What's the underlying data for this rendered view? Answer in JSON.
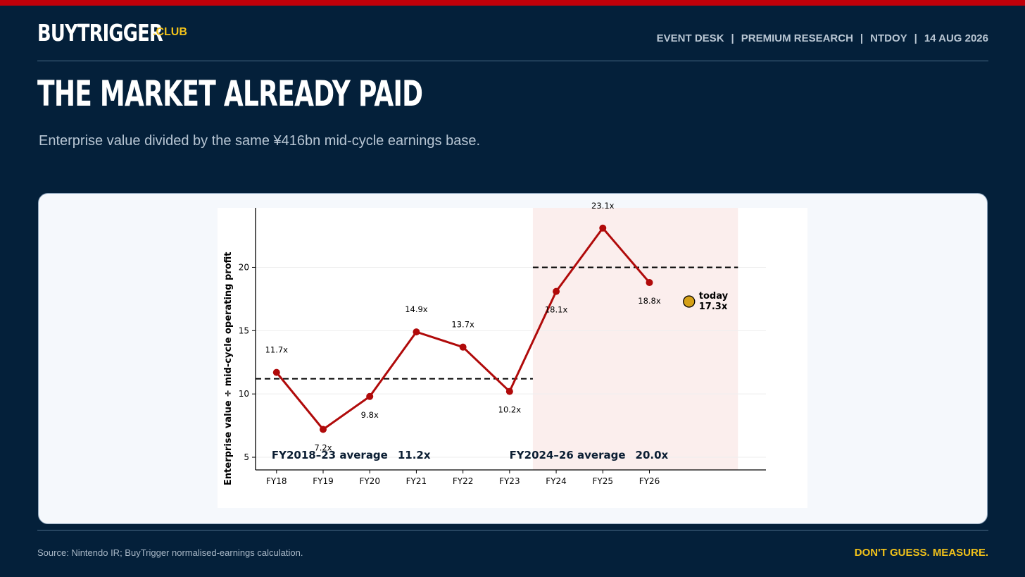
{
  "header": {
    "brand_main": "BUYTRIGGER",
    "brand_suffix": ".CLUB",
    "meta": [
      "EVENT DESK",
      "PREMIUM RESEARCH",
      "NTDOY",
      "14 AUG 2026"
    ],
    "separator": "|"
  },
  "headline": "THE MARKET ALREADY PAID",
  "subtitle": "Enterprise value divided by the same ¥416bn mid-cycle earnings base.",
  "footer": {
    "source": "Source: Nintendo IR; BuyTrigger normalised-earnings calculation.",
    "tagline": "DON'T GUESS. MEASURE."
  },
  "colors": {
    "background": "#04203a",
    "accent_red": "#c0000a",
    "line": "#b00a0a",
    "today_marker": "#d4a017",
    "shade": "#fbeeed",
    "tagline": "#f2c21a"
  },
  "chart_data": {
    "type": "line",
    "categories": [
      "FY18",
      "FY19",
      "FY20",
      "FY21",
      "FY22",
      "FY23",
      "FY24",
      "FY25",
      "FY26"
    ],
    "values": [
      11.7,
      7.2,
      9.8,
      14.9,
      13.7,
      10.2,
      18.1,
      23.1,
      18.8
    ],
    "point_labels": [
      "11.7x",
      "7.2x",
      "9.8x",
      "14.9x",
      "13.7x",
      "10.2x",
      "18.1x",
      "23.1x",
      "18.8x"
    ],
    "ylabel": "Enterprise value ÷ mid-cycle operating profit",
    "yticks": [
      5,
      10,
      15,
      20
    ],
    "ylim": [
      4,
      24.7
    ],
    "xlim": [
      -0.45,
      10.5
    ],
    "grid": "y",
    "averages": [
      {
        "label": "FY2018–23 average",
        "value_label": "11.2x",
        "value": 11.2,
        "x_start": -0.45,
        "x_end": 5.5
      },
      {
        "label": "FY2024–26 average",
        "value_label": "20.0x",
        "value": 20.0,
        "x_start": 5.5,
        "x_end": 9.9
      }
    ],
    "shaded_region": {
      "x_start": 5.5,
      "x_end": 9.9
    },
    "today": {
      "label": "today",
      "value_label": "17.3x",
      "value": 17.3,
      "x": 8.85
    }
  }
}
